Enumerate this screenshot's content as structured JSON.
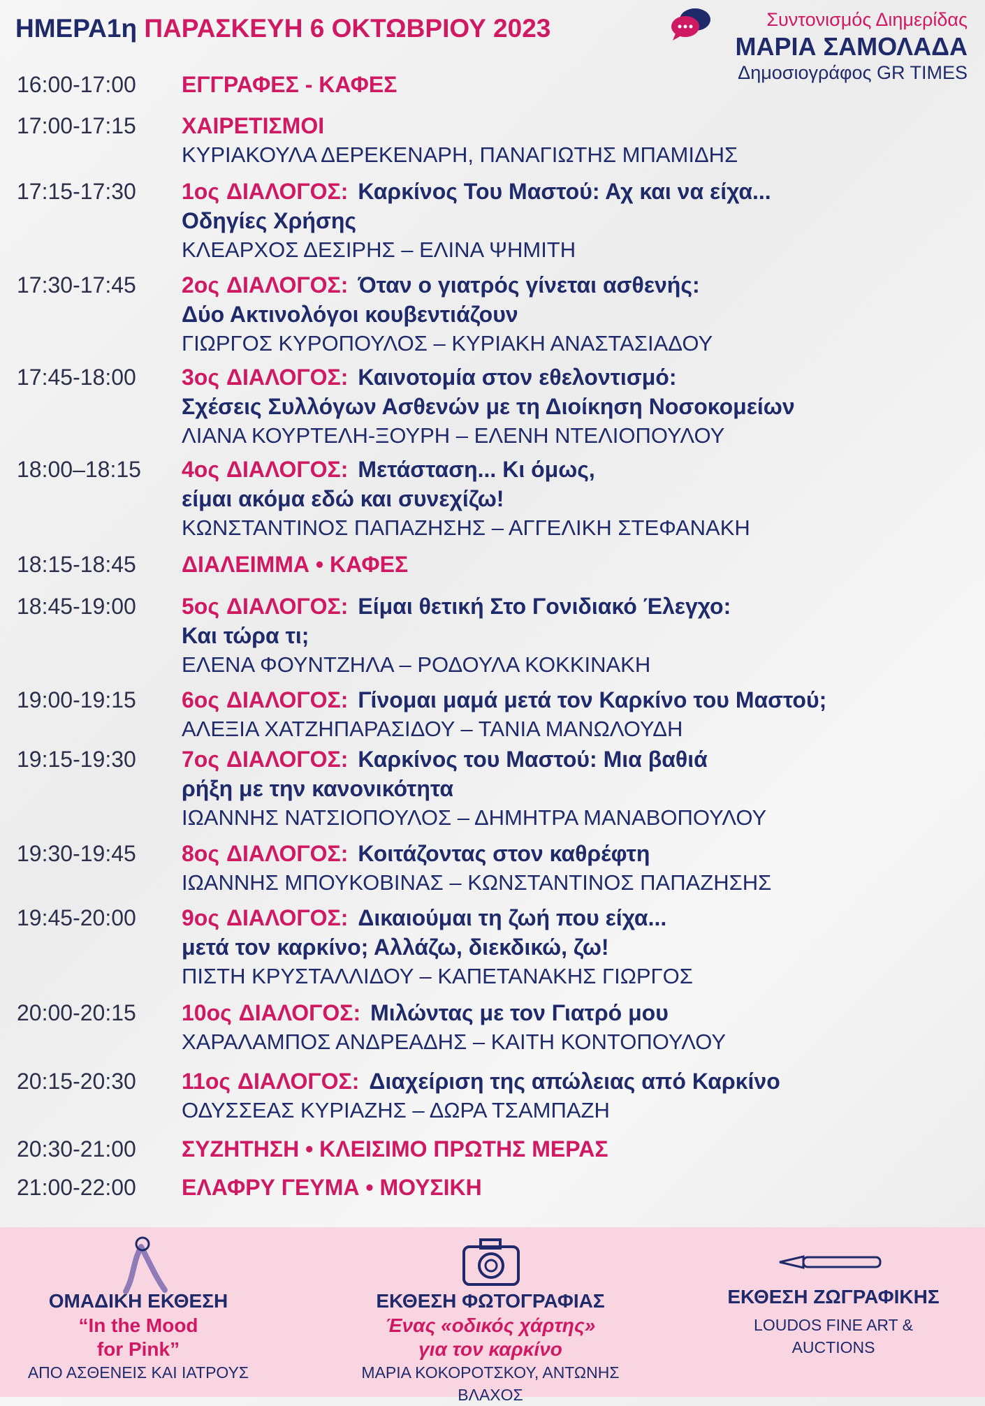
{
  "header": {
    "day": "ΗΜΕΡΑ1η",
    "date": "ΠΑΡΑΣΚΕΥΗ 6 ΟΚΤΩΒΡΙΟΥ 2023"
  },
  "coordinator": {
    "label": "Συντονισμός Διημερίδας",
    "name": "ΜΑΡΙΑ ΣΑΜΟΛΑΔΑ",
    "role": "Δημοσιογράφος GR TIMES"
  },
  "schedule": [
    {
      "time": "16:00-17:00",
      "label": "ΕΓΓΡΑΦΕΣ - ΚΑΦΕΣ"
    },
    {
      "time": "17:00-17:15",
      "label": "ΧΑΙΡΕΤΙΣΜΟΙ",
      "speakers": "ΚΥΡΙΑΚΟΥΛΑ ΔΕΡΕΚΕΝΑΡΗ, ΠΑΝΑΓΙΩΤΗΣ ΜΠΑΜΙΔΗΣ"
    },
    {
      "time": "17:15-17:30",
      "number": "1ος",
      "kind": "ΔΙΑΛΟΓΟΣ:",
      "lines": [
        "Καρκίνος Του Μαστού: Αχ και να είχα...",
        "Οδηγίες Χρήσης"
      ],
      "speakers": "ΚΛΕΑΡΧΟΣ ΔΕΣΙΡΗΣ – ΕΛΙΝΑ ΨΗΜΙΤΗ"
    },
    {
      "time": "17:30-17:45",
      "number": "2ος",
      "kind": "ΔΙΑΛΟΓΟΣ:",
      "lines": [
        "Όταν ο γιατρός γίνεται ασθενής:",
        "Δύο Ακτινολόγοι κουβεντιάζουν"
      ],
      "speakers": "ΓΙΩΡΓΟΣ ΚΥΡΟΠΟΥΛΟΣ – ΚΥΡΙΑΚΗ ΑΝΑΣΤΑΣΙΑΔΟΥ"
    },
    {
      "time": "17:45-18:00",
      "number": "3ος",
      "kind": "ΔΙΑΛΟΓΟΣ:",
      "lines": [
        "Καινοτομία στον εθελοντισμό:",
        "Σχέσεις Συλλόγων Ασθενών με τη Διοίκηση Νοσοκομείων"
      ],
      "speakers": "ΛΙΑΝΑ ΚΟΥΡΤΕΛΗ-ΞΟΥΡΗ – ΕΛΕΝΗ ΝΤΕΛΙΟΠΟΥΛΟΥ"
    },
    {
      "time": "18:00–18:15",
      "number": "4ος",
      "kind": "ΔΙΑΛΟΓΟΣ:",
      "lines": [
        "Μετάσταση... Κι όμως,",
        "είμαι ακόμα εδώ και συνεχίζω!"
      ],
      "speakers": "ΚΩΝΣΤΑΝΤΙΝΟΣ ΠΑΠΑΖΗΣΗΣ – ΑΓΓΕΛΙΚΗ ΣΤΕΦΑΝΑΚΗ"
    },
    {
      "time": "18:15-18:45",
      "label": "ΔΙΑΛΕΙΜΜΑ • ΚΑΦΕΣ"
    },
    {
      "time": "18:45-19:00",
      "number": "5ος",
      "kind": "ΔΙΑΛΟΓΟΣ:",
      "lines": [
        "Είμαι θετική Στο Γονιδιακό Έλεγχο:",
        "Και τώρα τι;"
      ],
      "speakers": "ΕΛΕΝΑ ΦΟΥΝΤΖΗΛΑ – ΡΟΔΟΥΛΑ ΚΟΚΚΙΝΑΚΗ"
    },
    {
      "time": "19:00-19:15",
      "number": "6ος",
      "kind": "ΔΙΑΛΟΓΟΣ:",
      "lines": [
        "Γίνομαι μαμά μετά τον Καρκίνο του Μαστού;"
      ],
      "speakers": "ΑΛΕΞΙΑ ΧΑΤΖΗΠΑΡΑΣΙΔΟΥ – ΤΑΝΙΑ ΜΑΝΩΛΟΥΔΗ"
    },
    {
      "time": "19:15-19:30",
      "number": "7ος",
      "kind": "ΔΙΑΛΟΓΟΣ:",
      "lines": [
        "Καρκίνος του Μαστού: Μια βαθιά",
        "ρήξη με την κανονικότητα"
      ],
      "speakers": "ΙΩΑΝΝΗΣ ΝΑΤΣΙΟΠΟΥΛΟΣ – ΔΗΜΗΤΡΑ ΜΑΝΑΒΟΠΟΥΛΟΥ"
    },
    {
      "time": "19:30-19:45",
      "number": "8ος",
      "kind": "ΔΙΑΛΟΓΟΣ:",
      "lines": [
        "Κοιτάζοντας στον καθρέφτη"
      ],
      "speakers": "ΙΩΑΝΝΗΣ ΜΠΟΥΚΟΒΙΝΑΣ – ΚΩΝΣΤΑΝΤΙΝΟΣ ΠΑΠΑΖΗΣΗΣ"
    },
    {
      "time": "19:45-20:00",
      "number": "9ος",
      "kind": "ΔΙΑΛΟΓΟΣ:",
      "lines": [
        "Δικαιούμαι τη ζωή που είχα...",
        "μετά τον καρκίνο; Αλλάζω, διεκδικώ, ζω!"
      ],
      "speakers": "ΠΙΣΤΗ ΚΡΥΣΤΑΛΛΙΔΟΥ – ΚΑΠΕΤΑΝΑΚΗΣ ΓΙΩΡΓΟΣ"
    },
    {
      "time": "20:00-20:15",
      "number": "10ος",
      "kind": "ΔΙΑΛΟΓΟΣ:",
      "lines": [
        "Μιλώντας με τον Γιατρό μου"
      ],
      "speakers": "ΧΑΡΑΛΑΜΠΟΣ ΑΝΔΡΕΑΔΗΣ – ΚΑΙΤΗ ΚΟΝΤΟΠΟΥΛΟΥ"
    },
    {
      "time": "20:15-20:30",
      "number": "11ος",
      "kind": "ΔΙΑΛΟΓΟΣ:",
      "lines": [
        "Διαχείριση της απώλειας από Καρκίνο"
      ],
      "speakers": "ΟΔΥΣΣΕΑΣ ΚΥΡΙΑΖΗΣ – ΔΩΡΑ ΤΣΑΜΠΑΖΗ"
    },
    {
      "time": "20:30-21:00",
      "label": "ΣΥΖΗΤΗΣΗ • ΚΛΕΙΣΙΜΟ ΠΡΩΤΗΣ ΜΕΡΑΣ"
    },
    {
      "time": "21:00-22:00",
      "label": "ΕΛΑΦΡΥ ΓΕΥΜΑ • ΜΟΥΣΙΚΗ"
    }
  ],
  "exhibitions": [
    {
      "title": "ΟΜΑΔΙΚΗ ΕΚΘΕΣΗ",
      "subtitle": [
        "“In the Mood",
        "for Pink”"
      ],
      "note": [
        "ΑΠΟ ΑΣΘΕΝΕΙΣ ΚΑΙ ΙΑΤΡΟΥΣ"
      ]
    },
    {
      "title": "ΕΚΘΕΣΗ ΦΩΤΟΓΡΑΦΙΑΣ",
      "subtitle": [
        "Ένας «οδικός χάρτης»",
        "για τον καρκίνο"
      ],
      "note": [
        "ΜΑΡΙΑ ΚΟΚΟΡΟΤΣΚΟΥ, ΑΝΤΩΝΗΣ ΒΛΑΧΟΣ"
      ]
    },
    {
      "title": "ΕΚΘΕΣΗ ΖΩΓΡΑΦΙΚΗΣ",
      "subtitle": [],
      "note": [
        "LOUDOS FINE ART &",
        "AUCTIONS"
      ]
    }
  ]
}
